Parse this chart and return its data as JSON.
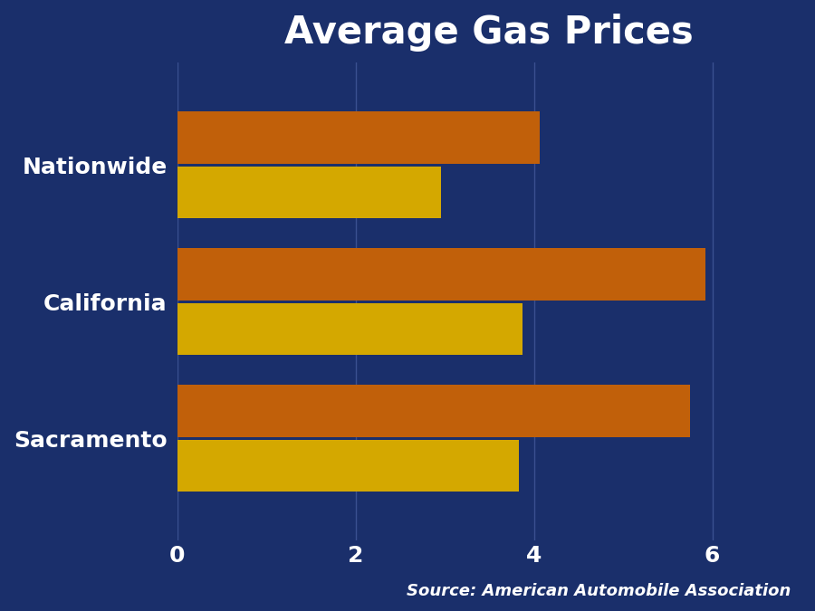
{
  "title": "Average Gas Prices",
  "categories": [
    "Sacramento",
    "California",
    "Nationwide"
  ],
  "current_prices": [
    5.75,
    5.92,
    4.07
  ],
  "year_ago_prices": [
    3.83,
    3.87,
    2.96
  ],
  "current_color": "#C1600A",
  "year_ago_color": "#D4A800",
  "background_color": "#1A2F6B",
  "text_color": "#FFFFFF",
  "title_fontsize": 30,
  "label_fontsize": 18,
  "tick_fontsize": 18,
  "source_text": "Source: American Automobile Association",
  "source_fontsize": 13,
  "xlim": [
    0,
    7
  ],
  "xticks": [
    0,
    2,
    4,
    6
  ]
}
